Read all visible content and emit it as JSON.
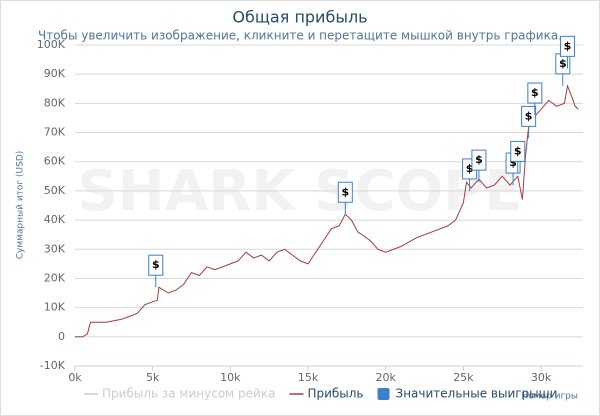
{
  "chart_data": {
    "type": "line",
    "title": "Общая прибыль",
    "subtitle": "Чтобы увеличить изображение, кликните и перетащите мышкой внутрь графика.",
    "watermark": "SHARK SCOPE",
    "x_label": "Номер игры",
    "y_label": "Суммарный итог (USD)",
    "xlim": [
      0,
      32700
    ],
    "ylim": [
      -10000,
      100000
    ],
    "xticks": [
      {
        "value": 0,
        "label": "0k"
      },
      {
        "value": 5000,
        "label": "5k"
      },
      {
        "value": 10000,
        "label": "10k"
      },
      {
        "value": 15000,
        "label": "15k"
      },
      {
        "value": 20000,
        "label": "20k"
      },
      {
        "value": 25000,
        "label": "25k"
      },
      {
        "value": 30000,
        "label": "30k"
      }
    ],
    "yticks": [
      {
        "value": -10000,
        "label": "-10K"
      },
      0,
      {
        "value": 10000,
        "label": "10K"
      },
      {
        "value": 20000,
        "label": "20K"
      },
      {
        "value": 30000,
        "label": "30K"
      },
      {
        "value": 40000,
        "label": "40K"
      },
      {
        "value": 50000,
        "label": "50K"
      },
      {
        "value": 60000,
        "label": "60K"
      },
      {
        "value": 70000,
        "label": "70K"
      },
      {
        "value": 80000,
        "label": "80K"
      },
      {
        "value": 90000,
        "label": "90K"
      },
      {
        "value": 100000,
        "label": "100K"
      }
    ],
    "grid": true,
    "series": [
      {
        "name": "Прибыль за минусом рейка",
        "color": "#cccccc",
        "visible": false,
        "x": [],
        "values": []
      },
      {
        "name": "Прибыль",
        "color": "#a83a3a",
        "visible": true,
        "x": [
          0,
          500,
          800,
          1000,
          2000,
          3000,
          4000,
          4500,
          5000,
          5300,
          5400,
          6000,
          6500,
          7000,
          7500,
          8000,
          8500,
          9000,
          10000,
          10500,
          11000,
          11500,
          12000,
          12500,
          13000,
          13500,
          14000,
          14500,
          15000,
          15500,
          16000,
          16500,
          17000,
          17400,
          17800,
          18200,
          19000,
          19500,
          20000,
          21000,
          22000,
          23000,
          24000,
          24500,
          25000,
          25200,
          25500,
          26000,
          26500,
          27000,
          27500,
          28000,
          28500,
          28800,
          29000,
          29200,
          29500,
          30000,
          30500,
          31000,
          31500,
          31700,
          32000,
          32200,
          32400
        ],
        "values": [
          0,
          0,
          1000,
          5000,
          5000,
          6000,
          8000,
          11000,
          12000,
          12500,
          17000,
          15000,
          16000,
          18000,
          22000,
          21000,
          24000,
          23000,
          25000,
          26000,
          29000,
          27000,
          28000,
          26000,
          29000,
          30000,
          28000,
          26000,
          25000,
          29000,
          33000,
          37000,
          38000,
          42000,
          40000,
          36000,
          33000,
          30000,
          29000,
          31000,
          34000,
          36000,
          38000,
          40000,
          46000,
          53000,
          51000,
          54000,
          51000,
          52000,
          55000,
          52000,
          55000,
          47000,
          62000,
          72000,
          75000,
          78000,
          81000,
          79000,
          80000,
          86000,
          82000,
          79000,
          78000
        ]
      },
      {
        "name": "Значительные выигрыши",
        "color": "#3d7fc8",
        "visible": true,
        "marker": "flag",
        "flag_label": "$",
        "x": [
          5200,
          17400,
          25400,
          26000,
          28200,
          28500,
          29200,
          29600,
          31400,
          31700
        ],
        "values": [
          17000,
          42000,
          50000,
          53000,
          52000,
          56000,
          68000,
          76000,
          86000,
          92000
        ]
      }
    ]
  }
}
